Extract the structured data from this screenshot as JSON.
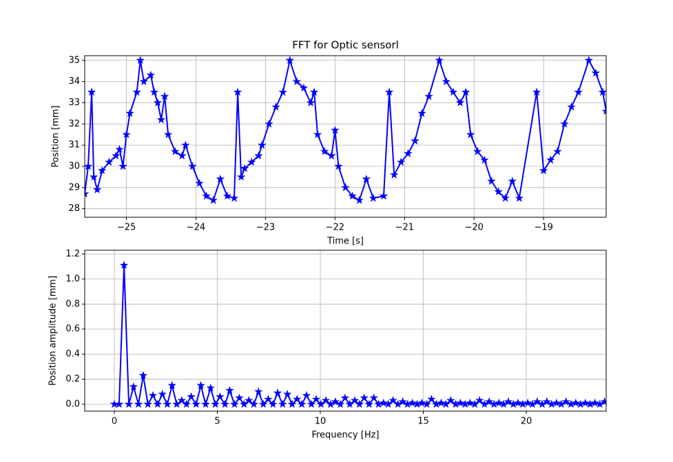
{
  "chart_data": [
    {
      "type": "line",
      "title": "FFT for Optic sensorl",
      "xlabel": "Time [s]",
      "ylabel": "Position [mm]",
      "xlim": [
        -25.6,
        -18.1
      ],
      "ylim": [
        27.6,
        35.22
      ],
      "xticks": [
        {
          "value": -25,
          "label": "−25"
        },
        {
          "value": -24,
          "label": "−24"
        },
        {
          "value": -23,
          "label": "−23"
        },
        {
          "value": -22,
          "label": "−22"
        },
        {
          "value": -21,
          "label": "−21"
        },
        {
          "value": -20,
          "label": "−20"
        },
        {
          "value": -19,
          "label": "−19"
        }
      ],
      "yticks": [
        28,
        29,
        30,
        31,
        32,
        33,
        34,
        35
      ],
      "grid": true,
      "series": [
        {
          "color": "#0000ff",
          "x": [
            -25.6,
            -25.55,
            -25.5,
            -25.47,
            -25.42,
            -25.35,
            -25.25,
            -25.15,
            -25.1,
            -25.05,
            -25.0,
            -24.95,
            -24.85,
            -24.8,
            -24.75,
            -24.65,
            -24.6,
            -24.55,
            -24.5,
            -24.45,
            -24.4,
            -24.3,
            -24.2,
            -24.15,
            -24.05,
            -23.95,
            -23.85,
            -23.75,
            -23.65,
            -23.55,
            -23.45,
            -23.4,
            -23.35,
            -23.3,
            -23.2,
            -23.1,
            -23.05,
            -22.95,
            -22.85,
            -22.75,
            -22.65,
            -22.55,
            -22.45,
            -22.35,
            -22.3,
            -22.25,
            -22.15,
            -22.05,
            -22.0,
            -21.95,
            -21.85,
            -21.75,
            -21.65,
            -21.55,
            -21.45,
            -21.3,
            -21.22,
            -21.15,
            -21.05,
            -20.95,
            -20.85,
            -20.75,
            -20.65,
            -20.5,
            -20.4,
            -20.3,
            -20.2,
            -20.12,
            -20.05,
            -19.95,
            -19.85,
            -19.75,
            -19.65,
            -19.55,
            -19.45,
            -19.35,
            -19.1,
            -19.0,
            -18.9,
            -18.8,
            -18.7,
            -18.6,
            -18.5,
            -18.35,
            -18.25,
            -18.15,
            -18.1
          ],
          "values": [
            28.7,
            30.0,
            33.5,
            29.5,
            28.9,
            29.8,
            30.2,
            30.5,
            30.8,
            30.0,
            31.5,
            32.5,
            33.5,
            35.0,
            34.0,
            34.3,
            33.5,
            33.0,
            32.2,
            33.3,
            31.5,
            30.7,
            30.5,
            31.0,
            30.0,
            29.2,
            28.6,
            28.4,
            29.4,
            28.6,
            28.5,
            33.5,
            29.5,
            29.9,
            30.2,
            30.5,
            31.0,
            32.0,
            32.8,
            33.5,
            35.0,
            34.0,
            33.7,
            33.0,
            33.5,
            31.5,
            30.7,
            30.5,
            31.7,
            30.0,
            29.0,
            28.6,
            28.4,
            29.4,
            28.5,
            28.6,
            33.5,
            29.6,
            30.2,
            30.6,
            31.2,
            32.5,
            33.3,
            35.0,
            34.0,
            33.5,
            33.0,
            33.5,
            31.5,
            30.7,
            30.3,
            29.3,
            28.8,
            28.5,
            29.3,
            28.5,
            33.5,
            29.8,
            30.3,
            30.7,
            32.0,
            32.8,
            33.5,
            35.0,
            34.4,
            33.5,
            32.6
          ]
        }
      ]
    },
    {
      "type": "line",
      "xlabel": "Frequency [Hz]",
      "ylabel": "Position amplitude [mm]",
      "xlim": [
        -1.44,
        23.88
      ],
      "ylim": [
        -0.055,
        1.23
      ],
      "xticks": [
        0,
        5,
        10,
        15,
        20
      ],
      "yticks": [
        {
          "value": 0,
          "label": "0.0"
        },
        {
          "value": 0.2,
          "label": "0.2"
        },
        {
          "value": 0.4,
          "label": "0.4"
        },
        {
          "value": 0.6,
          "label": "0.6"
        },
        {
          "value": 0.8,
          "label": "0.8"
        },
        {
          "value": 1.0,
          "label": "1.0"
        },
        {
          "value": 1.2,
          "label": "1.2"
        }
      ],
      "grid": true,
      "series": [
        {
          "color": "#0000ff",
          "x": [
            0,
            0.23,
            0.47,
            0.7,
            0.93,
            1.17,
            1.4,
            1.63,
            1.87,
            2.1,
            2.33,
            2.57,
            2.8,
            3.03,
            3.27,
            3.5,
            3.73,
            3.97,
            4.2,
            4.43,
            4.67,
            4.9,
            5.13,
            5.37,
            5.6,
            5.83,
            6.07,
            6.3,
            6.53,
            6.77,
            7.0,
            7.23,
            7.47,
            7.7,
            7.93,
            8.17,
            8.4,
            8.63,
            8.87,
            9.1,
            9.33,
            9.57,
            9.8,
            10.03,
            10.27,
            10.5,
            10.73,
            10.97,
            11.2,
            11.43,
            11.67,
            11.9,
            12.13,
            12.37,
            12.6,
            12.83,
            13.07,
            13.3,
            13.53,
            13.77,
            14.0,
            14.23,
            14.47,
            14.7,
            14.93,
            15.17,
            15.4,
            15.63,
            15.87,
            16.1,
            16.33,
            16.57,
            16.8,
            17.03,
            17.27,
            17.5,
            17.73,
            17.97,
            18.2,
            18.43,
            18.67,
            18.9,
            19.13,
            19.37,
            19.6,
            19.83,
            20.07,
            20.3,
            20.53,
            20.77,
            21.0,
            21.23,
            21.47,
            21.7,
            21.93,
            22.17,
            22.4,
            22.63,
            22.87,
            23.1,
            23.33,
            23.57,
            23.8
          ],
          "values": [
            0,
            0,
            1.11,
            0,
            0.14,
            0,
            0.23,
            0,
            0.07,
            0,
            0.08,
            0,
            0.15,
            0,
            0.03,
            0,
            0.06,
            0,
            0.15,
            0,
            0.13,
            0,
            0.06,
            0,
            0.11,
            0,
            0.05,
            0,
            0.03,
            0,
            0.1,
            0,
            0.04,
            0,
            0.09,
            0,
            0.08,
            0,
            0.04,
            0,
            0.07,
            0,
            0.04,
            0,
            0.03,
            0,
            0.02,
            0,
            0.05,
            0,
            0.03,
            0,
            0.05,
            0,
            0.05,
            0,
            0.01,
            0,
            0.03,
            0,
            0.02,
            0,
            0.01,
            0,
            0.01,
            0,
            0.04,
            0,
            0.01,
            0,
            0.03,
            0,
            0.01,
            0,
            0.01,
            0,
            0.03,
            0,
            0.02,
            0,
            0.01,
            0,
            0.02,
            0,
            0.01,
            0,
            0.01,
            0,
            0.02,
            0,
            0.02,
            0,
            0.01,
            0,
            0.02,
            0,
            0.01,
            0,
            0.01,
            0,
            0.01,
            0,
            0.02
          ]
        }
      ]
    }
  ]
}
